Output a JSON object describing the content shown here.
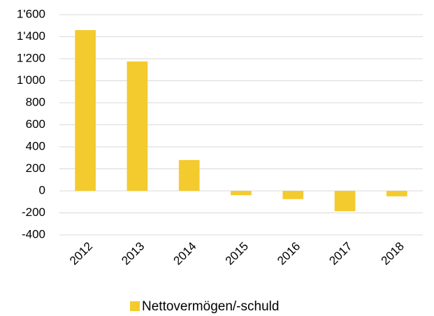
{
  "chart_data": {
    "type": "bar",
    "categories": [
      "2012",
      "2013",
      "2014",
      "2015",
      "2016",
      "2017",
      "2018"
    ],
    "series": [
      {
        "name": "Nettovermögen/-schuld",
        "color": "#f4cb2e",
        "values": [
          1460,
          1175,
          280,
          -40,
          -75,
          -185,
          -50
        ]
      }
    ],
    "ylim": [
      -400,
      1600
    ],
    "yticks": [
      -400,
      -200,
      0,
      200,
      400,
      600,
      800,
      {
        "value": 1000,
        "label": "1'000"
      },
      {
        "value": 1200,
        "label": "1'200"
      },
      {
        "value": 1400,
        "label": "1'400"
      },
      {
        "value": 1600,
        "label": "1'600"
      }
    ],
    "grid": true,
    "legend": "bottom"
  }
}
